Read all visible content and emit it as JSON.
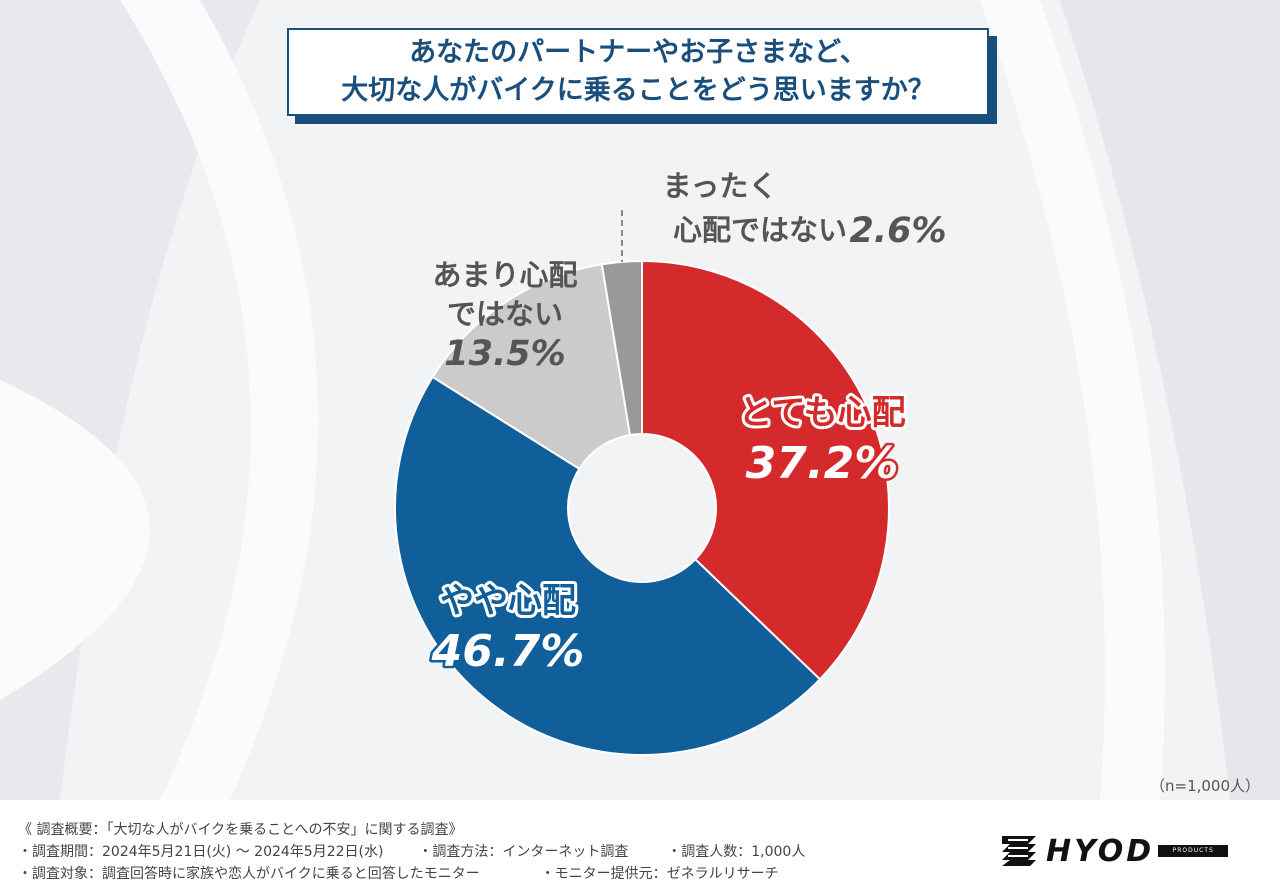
{
  "title": {
    "line1": "あなたのパートナーやお子さまなど、",
    "line2": "大切な人がバイクに乗ることをどう思いますか？"
  },
  "chart_data": {
    "type": "pie",
    "donut": true,
    "start": "top",
    "direction": "clockwise",
    "slices": [
      {
        "label_lines": [
          "とても心配"
        ],
        "value": 37.2,
        "value_text": "37.2%",
        "color": "#d42a2b",
        "label_color": "#d42a2b",
        "label_style": "outlined"
      },
      {
        "label_lines": [
          "やや心配"
        ],
        "value": 46.7,
        "value_text": "46.7%",
        "color": "#115f9a",
        "label_color": "#115f9a",
        "label_style": "outlined"
      },
      {
        "label_lines": [
          "あまり心配",
          "ではない"
        ],
        "value": 13.5,
        "value_text": "13.5%",
        "color": "#cbcbcb",
        "label_color": "#555555",
        "label_style": "plain"
      },
      {
        "label_lines": [
          "まったく",
          "心配ではない"
        ],
        "value": 2.6,
        "value_text": "2.6%",
        "color": "#999999",
        "label_color": "#555555",
        "label_style": "plain"
      }
    ]
  },
  "sample_note": "（n=1,000人）",
  "survey": {
    "overview": "《 調査概要：「大切な人がバイクを乗ることへの不安」に関する調査》",
    "period": "・調査期間：2024年5月21日(火) 〜 2024年5月22日(水)",
    "method": "・調査方法：インターネット調査",
    "count": "・調査人数：1,000人",
    "target": "・調査対象：調査回答時に家族や恋人がバイクに乗ると回答したモニター",
    "provider": "・モニター提供元：ゼネラルリサーチ"
  },
  "logo": {
    "text": "HYOD",
    "sub": "PRODUCTS"
  }
}
